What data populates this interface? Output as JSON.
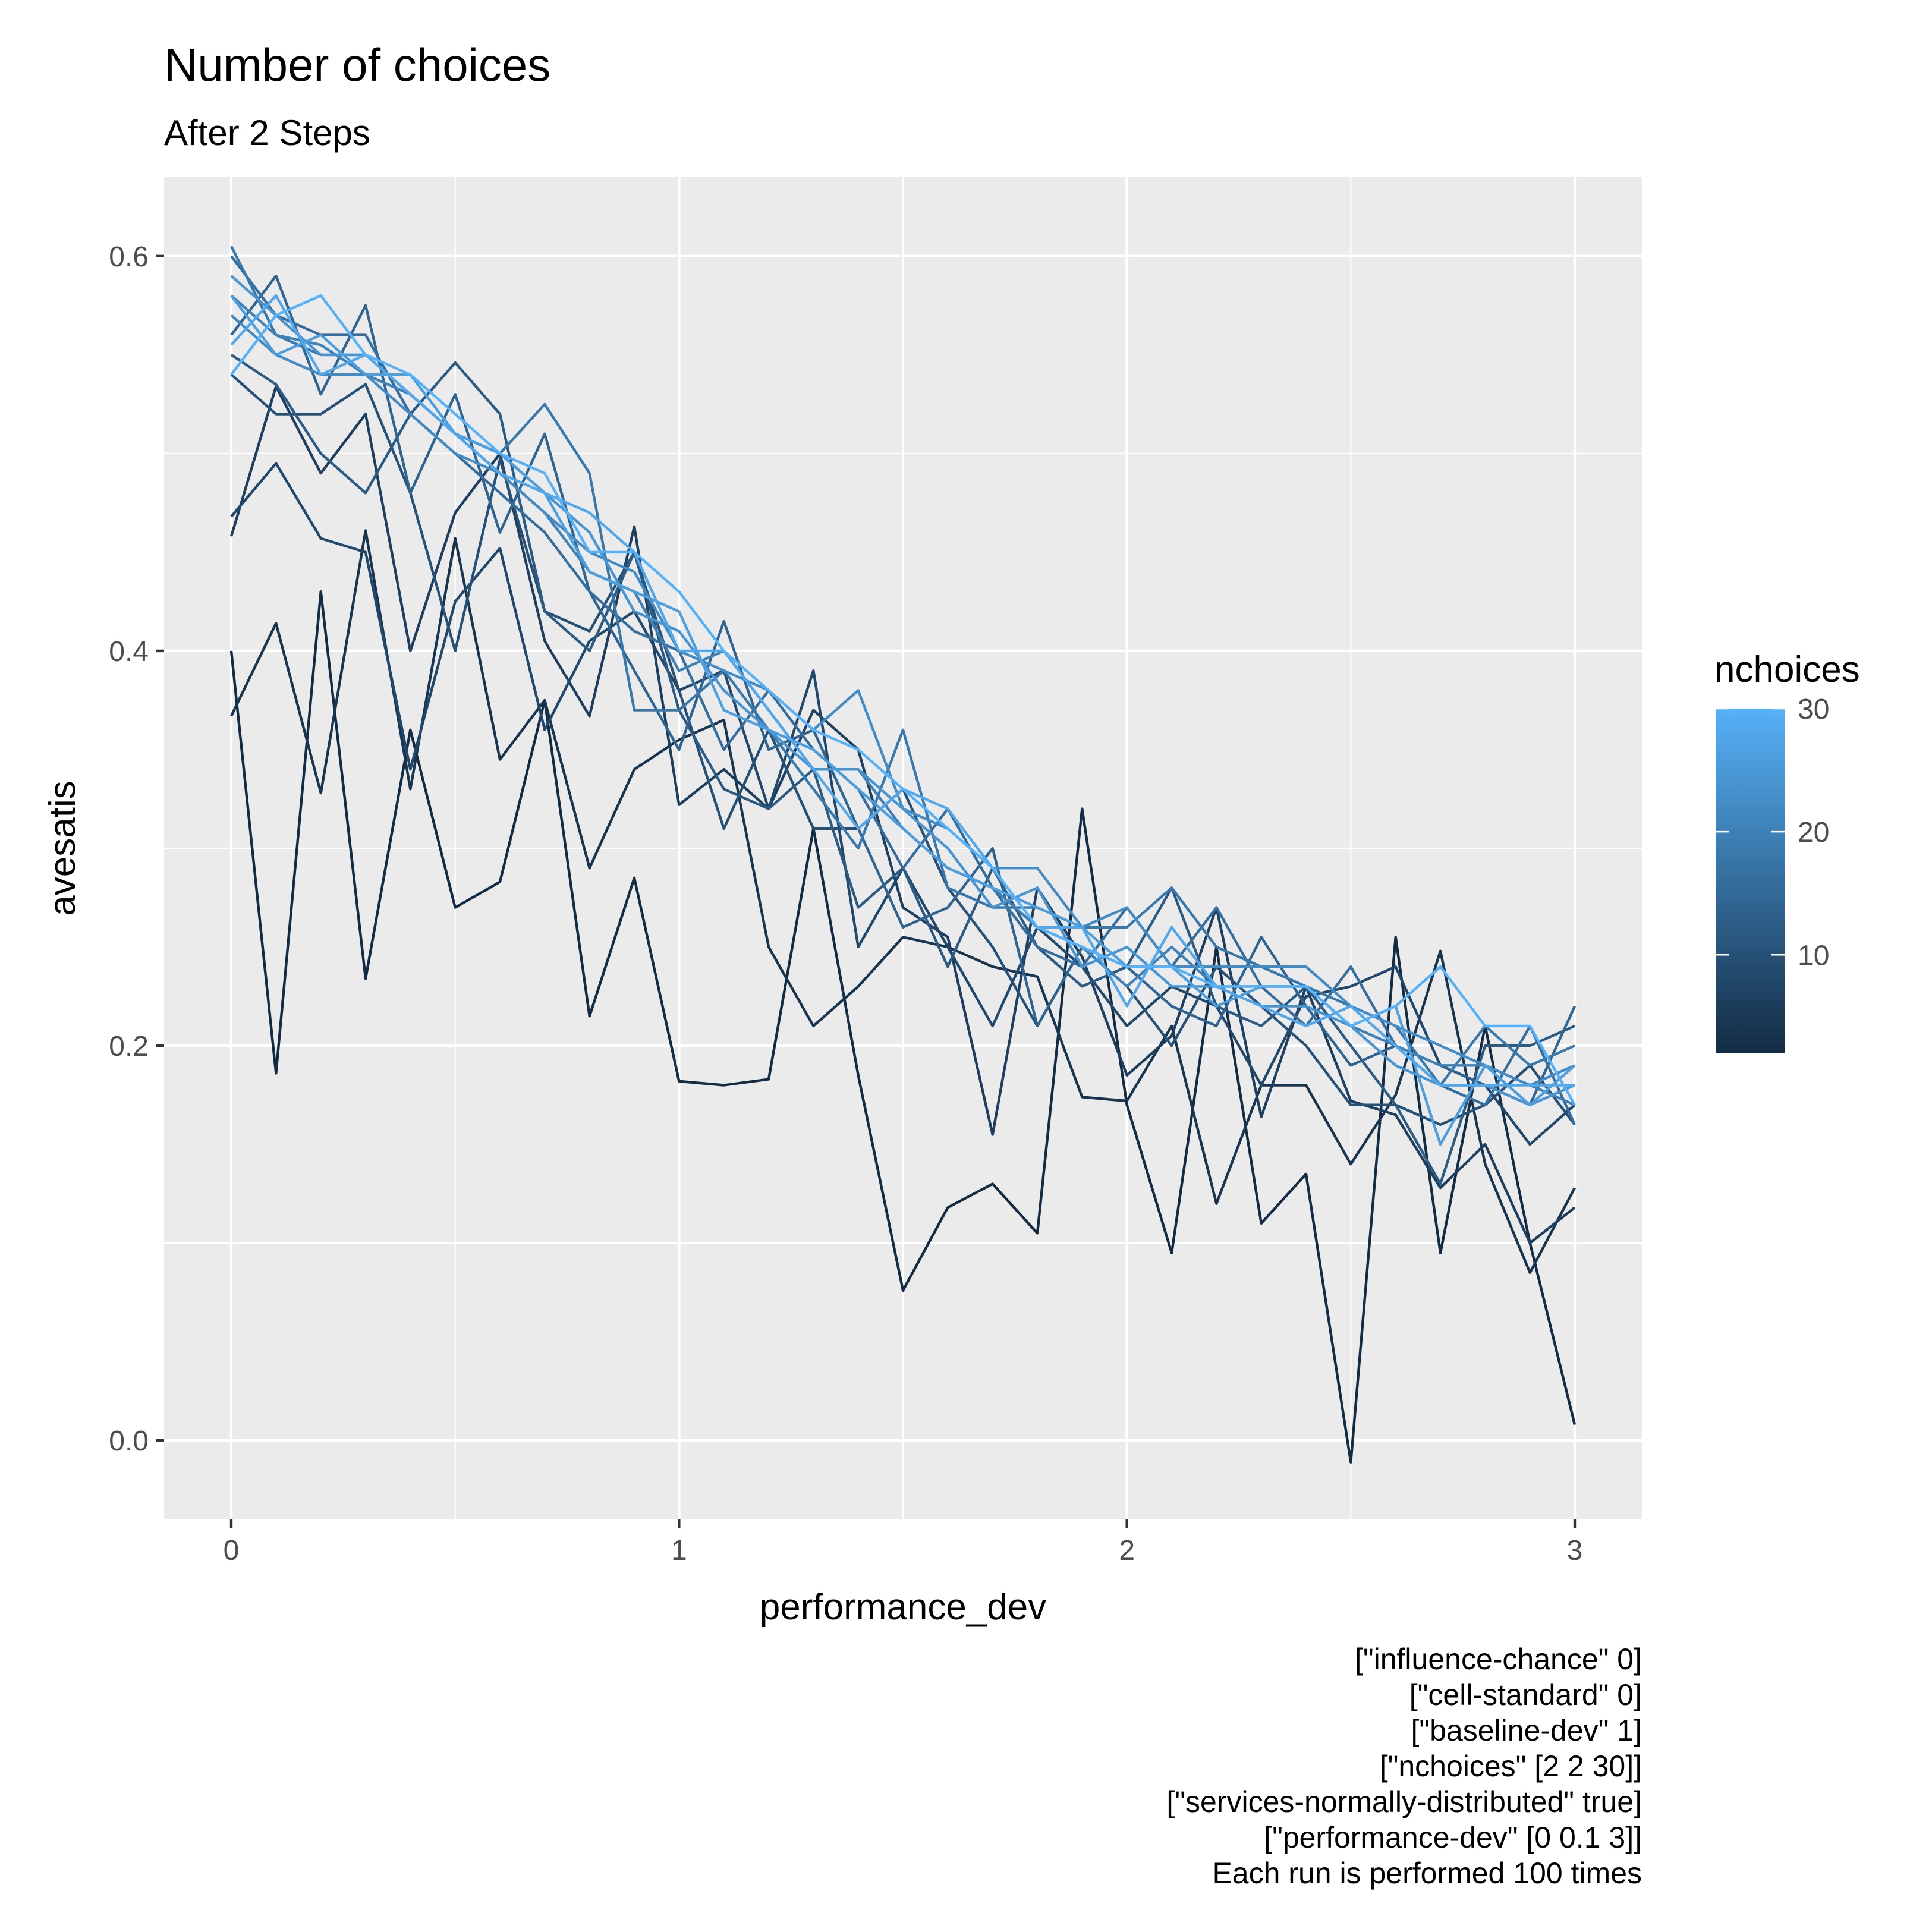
{
  "chart_data": {
    "type": "line",
    "title": "Number of choices",
    "subtitle": "After 2 Steps",
    "xlabel": "performance_dev",
    "ylabel": "avesatis",
    "xlim": [
      -0.15,
      3.15
    ],
    "ylim": [
      -0.04,
      0.64
    ],
    "x_ticks": [
      0,
      1,
      2,
      3
    ],
    "x_tick_labels": [
      "0",
      "1",
      "2",
      "3"
    ],
    "y_ticks": [
      0.0,
      0.2,
      0.4,
      0.6
    ],
    "y_tick_labels": [
      "0.0",
      "0.2",
      "0.4",
      "0.6"
    ],
    "grid": true,
    "legend": {
      "title": "nchoices",
      "placement": "right",
      "type": "colorbar",
      "range": [
        2,
        30
      ],
      "ticks": [
        10,
        20,
        30
      ],
      "tick_labels": [
        "10",
        "20",
        "30"
      ],
      "low_color": "#132B43",
      "high_color": "#56B1F7"
    },
    "caption": [
      "[\"influence-chance\" 0]",
      "[\"cell-standard\" 0]",
      "[\"baseline-dev\" 1]",
      "[\"nchoices\" [2 2 30]]",
      "[\"services-normally-distributed\" true]",
      "[\"performance-dev\" [0 0.1 3]]",
      "Each run is performed 100 times"
    ],
    "x": [
      0,
      0.1,
      0.2,
      0.3,
      0.4,
      0.5,
      0.6,
      0.7,
      0.8,
      0.9,
      1.0,
      1.1,
      1.2,
      1.3,
      1.4,
      1.5,
      1.6,
      1.7,
      1.8,
      1.9,
      2.0,
      2.1,
      2.2,
      2.3,
      2.4,
      2.5,
      2.6,
      2.7,
      2.8,
      2.9,
      3.0
    ],
    "series": [
      {
        "nchoices": 2,
        "values": [
          0.4,
          0.186,
          0.43,
          0.234,
          0.36,
          0.27,
          0.283,
          0.375,
          0.215,
          0.285,
          0.182,
          0.18,
          0.183,
          0.31,
          0.185,
          0.076,
          0.118,
          0.13,
          0.105,
          0.32,
          0.17,
          0.095,
          0.25,
          0.11,
          0.135,
          -0.011,
          0.255,
          0.095,
          0.21,
          0.1,
          0.008
        ]
      },
      {
        "nchoices": 4,
        "values": [
          0.367,
          0.414,
          0.328,
          0.461,
          0.33,
          0.457,
          0.345,
          0.375,
          0.29,
          0.34,
          0.355,
          0.365,
          0.25,
          0.21,
          0.23,
          0.255,
          0.25,
          0.24,
          0.235,
          0.174,
          0.172,
          0.21,
          0.12,
          0.18,
          0.18,
          0.14,
          0.175,
          0.248,
          0.14,
          0.085,
          0.128
        ]
      },
      {
        "nchoices": 6,
        "values": [
          0.458,
          0.534,
          0.49,
          0.52,
          0.4,
          0.47,
          0.5,
          0.405,
          0.367,
          0.463,
          0.322,
          0.34,
          0.32,
          0.37,
          0.35,
          0.27,
          0.255,
          0.155,
          0.28,
          0.245,
          0.185,
          0.205,
          0.27,
          0.164,
          0.23,
          0.172,
          0.165,
          0.128,
          0.15,
          0.1,
          0.118
        ]
      },
      {
        "nchoices": 8,
        "values": [
          0.468,
          0.495,
          0.457,
          0.45,
          0.34,
          0.425,
          0.452,
          0.36,
          0.405,
          0.42,
          0.38,
          0.39,
          0.32,
          0.39,
          0.25,
          0.29,
          0.25,
          0.21,
          0.26,
          0.24,
          0.21,
          0.23,
          0.22,
          0.18,
          0.225,
          0.23,
          0.24,
          0.19,
          0.18,
          0.15,
          0.17
        ]
      },
      {
        "nchoices": 10,
        "values": [
          0.54,
          0.52,
          0.52,
          0.535,
          0.48,
          0.4,
          0.497,
          0.42,
          0.41,
          0.45,
          0.38,
          0.31,
          0.36,
          0.31,
          0.31,
          0.33,
          0.28,
          0.25,
          0.21,
          0.25,
          0.23,
          0.2,
          0.24,
          0.22,
          0.2,
          0.17,
          0.17,
          0.16,
          0.17,
          0.19,
          0.16
        ]
      },
      {
        "nchoices": 12,
        "values": [
          0.55,
          0.535,
          0.5,
          0.48,
          0.52,
          0.546,
          0.52,
          0.42,
          0.4,
          0.45,
          0.37,
          0.33,
          0.32,
          0.34,
          0.27,
          0.29,
          0.24,
          0.29,
          0.25,
          0.23,
          0.24,
          0.28,
          0.22,
          0.21,
          0.23,
          0.2,
          0.17,
          0.13,
          0.2,
          0.2,
          0.21
        ]
      },
      {
        "nchoices": 14,
        "values": [
          0.56,
          0.59,
          0.53,
          0.575,
          0.48,
          0.53,
          0.46,
          0.51,
          0.43,
          0.39,
          0.35,
          0.415,
          0.35,
          0.36,
          0.31,
          0.26,
          0.27,
          0.3,
          0.21,
          0.25,
          0.24,
          0.22,
          0.21,
          0.255,
          0.22,
          0.19,
          0.2,
          0.19,
          0.18,
          0.17,
          0.22
        ]
      },
      {
        "nchoices": 16,
        "values": [
          0.6,
          0.57,
          0.56,
          0.56,
          0.52,
          0.5,
          0.48,
          0.46,
          0.43,
          0.41,
          0.4,
          0.35,
          0.38,
          0.35,
          0.33,
          0.29,
          0.32,
          0.28,
          0.25,
          0.24,
          0.27,
          0.24,
          0.27,
          0.23,
          0.21,
          0.24,
          0.2,
          0.18,
          0.17,
          0.21,
          0.16
        ]
      },
      {
        "nchoices": 18,
        "values": [
          0.605,
          0.56,
          0.55,
          0.55,
          0.53,
          0.51,
          0.5,
          0.525,
          0.49,
          0.37,
          0.37,
          0.39,
          0.36,
          0.33,
          0.3,
          0.36,
          0.28,
          0.27,
          0.27,
          0.26,
          0.26,
          0.28,
          0.25,
          0.24,
          0.23,
          0.22,
          0.21,
          0.18,
          0.21,
          0.19,
          0.2
        ]
      },
      {
        "nchoices": 20,
        "values": [
          0.58,
          0.56,
          0.555,
          0.54,
          0.53,
          0.51,
          0.49,
          0.47,
          0.44,
          0.43,
          0.39,
          0.4,
          0.37,
          0.34,
          0.34,
          0.31,
          0.29,
          0.28,
          0.26,
          0.25,
          0.23,
          0.25,
          0.23,
          0.23,
          0.23,
          0.21,
          0.2,
          0.19,
          0.19,
          0.18,
          0.17
        ]
      },
      {
        "nchoices": 22,
        "values": [
          0.57,
          0.55,
          0.54,
          0.54,
          0.52,
          0.5,
          0.49,
          0.47,
          0.45,
          0.44,
          0.4,
          0.39,
          0.38,
          0.36,
          0.38,
          0.32,
          0.31,
          0.29,
          0.29,
          0.26,
          0.27,
          0.24,
          0.24,
          0.24,
          0.24,
          0.22,
          0.21,
          0.2,
          0.19,
          0.18,
          0.19
        ]
      },
      {
        "nchoices": 24,
        "values": [
          0.59,
          0.57,
          0.55,
          0.55,
          0.53,
          0.51,
          0.5,
          0.48,
          0.46,
          0.42,
          0.41,
          0.38,
          0.36,
          0.34,
          0.34,
          0.32,
          0.3,
          0.27,
          0.28,
          0.24,
          0.25,
          0.23,
          0.23,
          0.22,
          0.22,
          0.21,
          0.19,
          0.18,
          0.18,
          0.17,
          0.18
        ]
      },
      {
        "nchoices": 26,
        "values": [
          0.58,
          0.55,
          0.56,
          0.54,
          0.54,
          0.51,
          0.5,
          0.48,
          0.44,
          0.43,
          0.42,
          0.37,
          0.36,
          0.35,
          0.33,
          0.31,
          0.29,
          0.28,
          0.27,
          0.26,
          0.24,
          0.24,
          0.22,
          0.23,
          0.23,
          0.21,
          0.22,
          0.15,
          0.19,
          0.17,
          0.19
        ]
      },
      {
        "nchoices": 28,
        "values": [
          0.555,
          0.58,
          0.54,
          0.55,
          0.53,
          0.51,
          0.49,
          0.48,
          0.47,
          0.45,
          0.4,
          0.4,
          0.37,
          0.34,
          0.31,
          0.33,
          0.32,
          0.29,
          0.26,
          0.26,
          0.22,
          0.26,
          0.23,
          0.22,
          0.21,
          0.22,
          0.2,
          0.18,
          0.18,
          0.18,
          0.18
        ]
      },
      {
        "nchoices": 30,
        "values": [
          0.54,
          0.57,
          0.58,
          0.55,
          0.54,
          0.52,
          0.5,
          0.49,
          0.45,
          0.45,
          0.43,
          0.4,
          0.38,
          0.36,
          0.35,
          0.33,
          0.31,
          0.29,
          0.26,
          0.25,
          0.24,
          0.24,
          0.23,
          0.23,
          0.23,
          0.21,
          0.22,
          0.24,
          0.21,
          0.21,
          0.17
        ]
      }
    ]
  }
}
